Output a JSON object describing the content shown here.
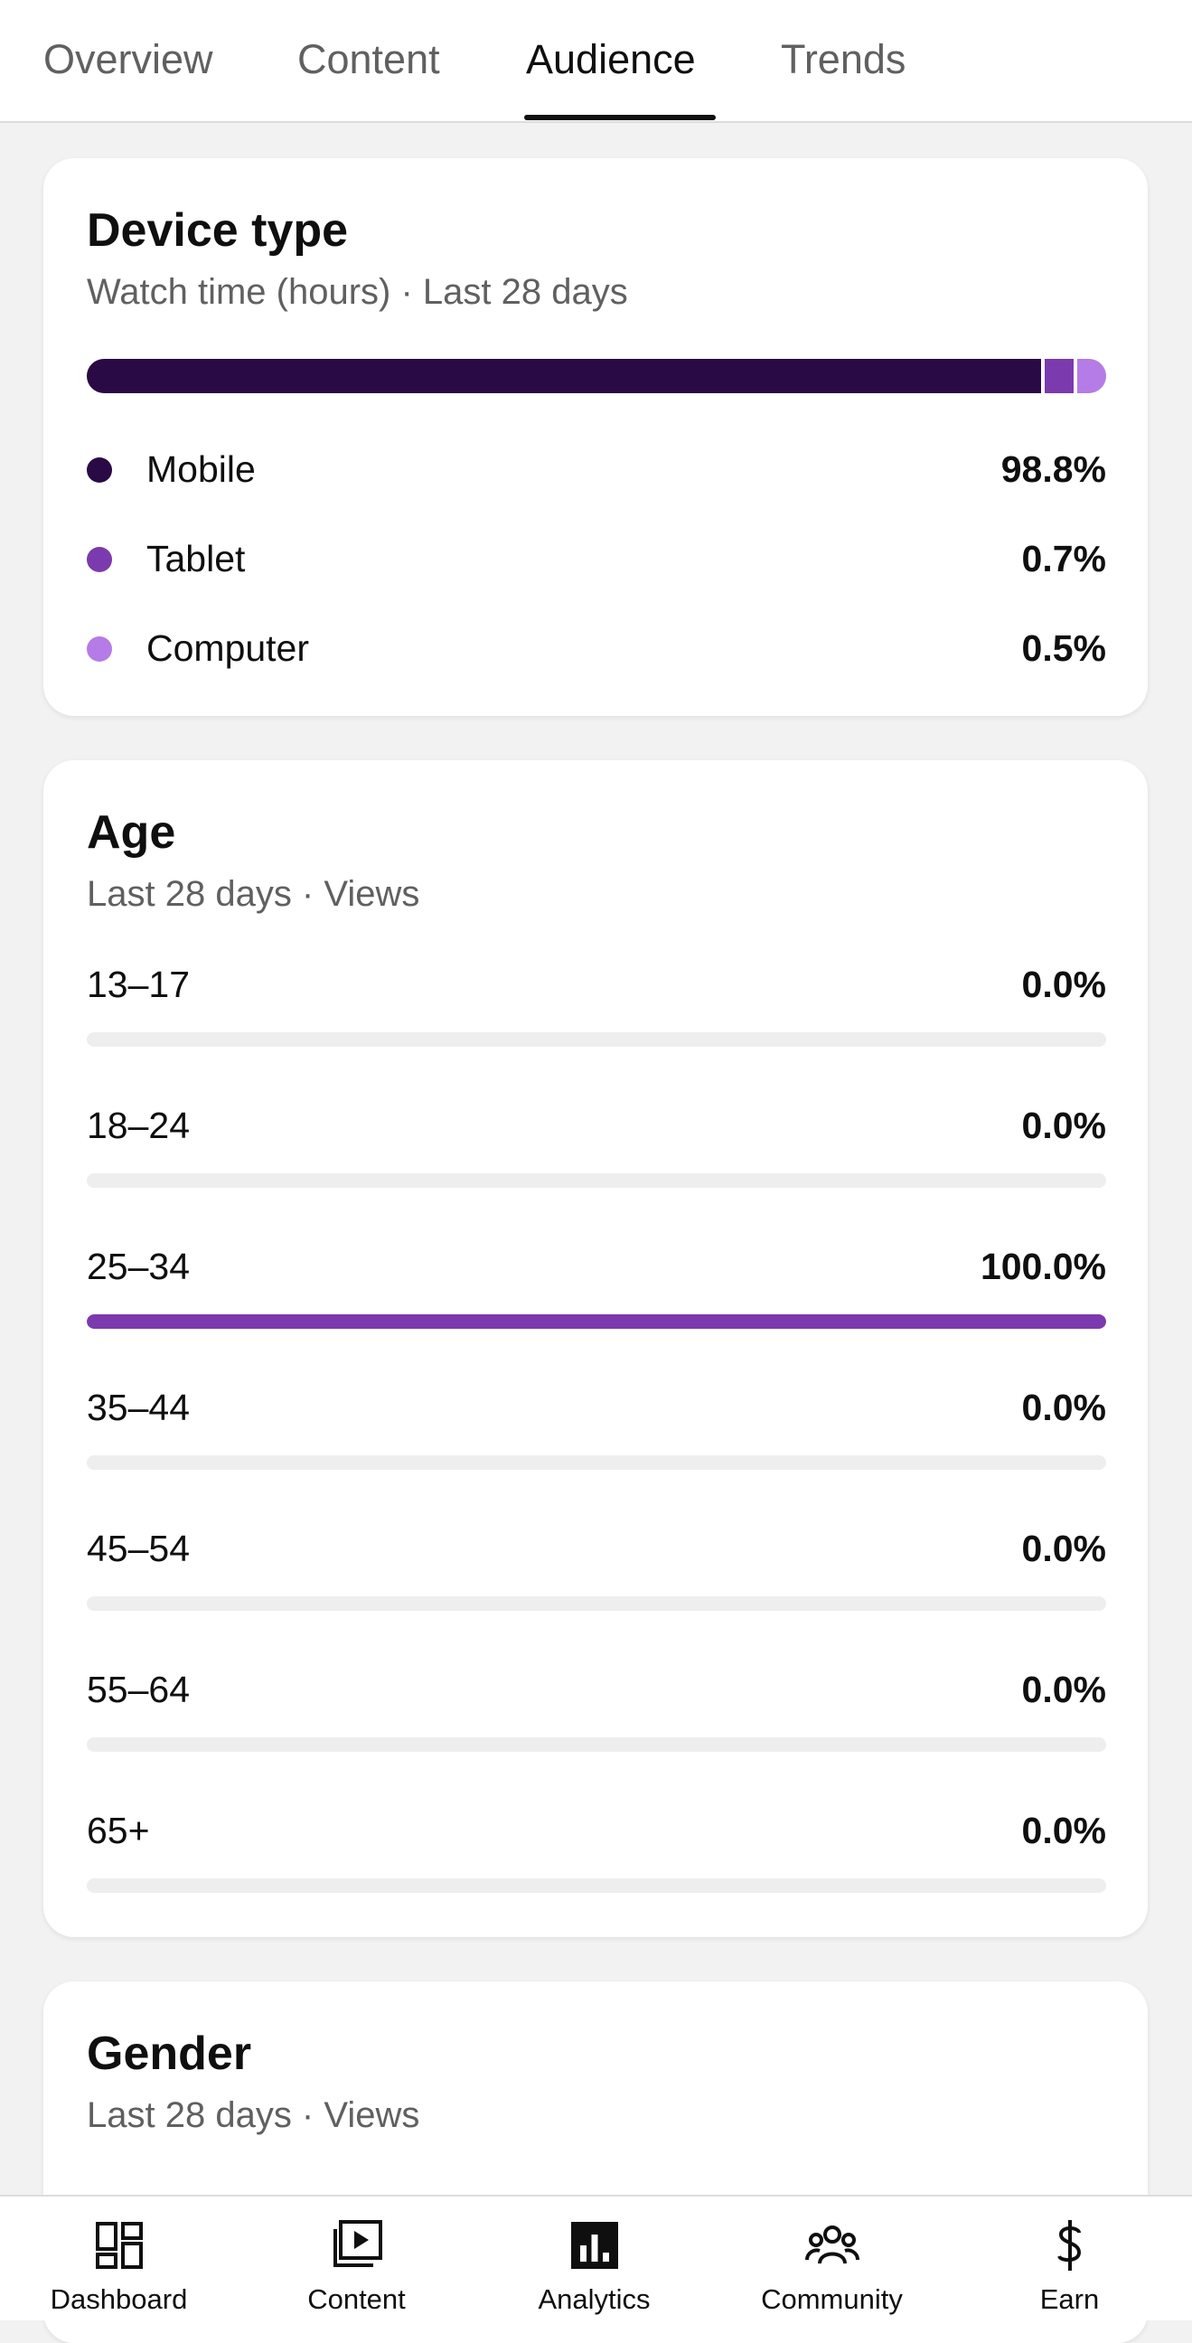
{
  "tabs": [
    {
      "label": "Overview",
      "active": false
    },
    {
      "label": "Content",
      "active": false
    },
    {
      "label": "Audience",
      "active": true
    },
    {
      "label": "Trends",
      "active": false
    }
  ],
  "device_card": {
    "title": "Device type",
    "subtitle": "Watch time (hours) · Last 28 days",
    "items": [
      {
        "label": "Mobile",
        "value": "98.8%",
        "share": 0.988,
        "color": "#2a0a45"
      },
      {
        "label": "Tablet",
        "value": "0.7%",
        "share": 0.007,
        "color": "#7b3aad"
      },
      {
        "label": "Computer",
        "value": "0.5%",
        "share": 0.005,
        "color": "#b57be6"
      }
    ]
  },
  "age_card": {
    "title": "Age",
    "subtitle": "Last 28 days · Views",
    "bar_color": "#7b3aad",
    "rows": [
      {
        "label": "13–17",
        "value": "0.0%",
        "share": 0.0
      },
      {
        "label": "18–24",
        "value": "0.0%",
        "share": 0.0
      },
      {
        "label": "25–34",
        "value": "100.0%",
        "share": 1.0
      },
      {
        "label": "35–44",
        "value": "0.0%",
        "share": 0.0
      },
      {
        "label": "45–54",
        "value": "0.0%",
        "share": 0.0
      },
      {
        "label": "55–64",
        "value": "0.0%",
        "share": 0.0
      },
      {
        "label": "65+",
        "value": "0.0%",
        "share": 0.0
      }
    ]
  },
  "gender_card": {
    "title": "Gender",
    "subtitle": "Last 28 days · Views"
  },
  "bottom_nav": [
    {
      "label": "Dashboard",
      "icon": "dashboard-icon"
    },
    {
      "label": "Content",
      "icon": "content-icon"
    },
    {
      "label": "Analytics",
      "icon": "analytics-icon",
      "active": true
    },
    {
      "label": "Community",
      "icon": "community-icon"
    },
    {
      "label": "Earn",
      "icon": "earn-icon"
    }
  ]
}
